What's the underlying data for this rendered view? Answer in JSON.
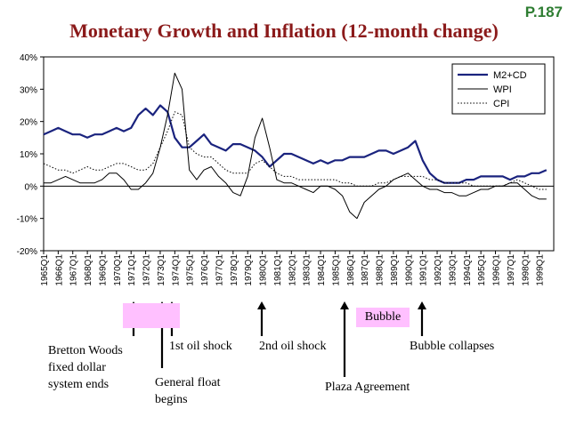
{
  "page_number": "P.187",
  "chart_data": {
    "type": "line",
    "title": "Monetary Growth and Inflation (12-month change)",
    "ylim": [
      -20,
      40
    ],
    "yticks": [
      "40%",
      "30%",
      "20%",
      "10%",
      "0%",
      "-10%",
      "-20%"
    ],
    "ytick_values": [
      40,
      30,
      20,
      10,
      0,
      -10,
      -20
    ],
    "x_start": 1965.0,
    "x_end": 2000.0,
    "xtick_labels": [
      "1965Q1",
      "1966Q1",
      "1967Q1",
      "1968Q1",
      "1969Q1",
      "1970Q1",
      "1971Q1",
      "1972Q1",
      "1973Q1",
      "1974Q1",
      "1975Q1",
      "1976Q1",
      "1977Q1",
      "1978Q1",
      "1979Q1",
      "1980Q1",
      "1981Q1",
      "1982Q1",
      "1983Q1",
      "1984Q1",
      "1985Q1",
      "1986Q1",
      "1987Q1",
      "1988Q1",
      "1989Q1",
      "1990Q1",
      "1991Q1",
      "1992Q1",
      "1993Q1",
      "1994Q1",
      "1995Q1",
      "1996Q1",
      "1997Q1",
      "1998Q1",
      "1999Q1"
    ],
    "legend_position": "top-right",
    "grid": false,
    "series": [
      {
        "name": "M2+CD",
        "color": "#1a237e",
        "style": "solid-thick",
        "x": [
          1965.0,
          1965.5,
          1966.0,
          1966.5,
          1967.0,
          1967.5,
          1968.0,
          1968.5,
          1969.0,
          1969.5,
          1970.0,
          1970.5,
          1971.0,
          1971.5,
          1972.0,
          1972.5,
          1973.0,
          1973.5,
          1974.0,
          1974.5,
          1975.0,
          1975.5,
          1976.0,
          1976.5,
          1977.0,
          1977.5,
          1978.0,
          1978.5,
          1979.0,
          1979.5,
          1980.0,
          1980.5,
          1981.0,
          1981.5,
          1982.0,
          1982.5,
          1983.0,
          1983.5,
          1984.0,
          1984.5,
          1985.0,
          1985.5,
          1986.0,
          1986.5,
          1987.0,
          1987.5,
          1988.0,
          1988.5,
          1989.0,
          1989.5,
          1990.0,
          1990.5,
          1991.0,
          1991.5,
          1992.0,
          1992.5,
          1993.0,
          1993.5,
          1994.0,
          1994.5,
          1995.0,
          1995.5,
          1996.0,
          1996.5,
          1997.0,
          1997.5,
          1998.0,
          1998.5,
          1999.0,
          1999.5
        ],
        "y": [
          16,
          17,
          18,
          17,
          16,
          16,
          15,
          16,
          16,
          17,
          18,
          17,
          18,
          22,
          24,
          22,
          25,
          23,
          15,
          12,
          12,
          14,
          16,
          13,
          12,
          11,
          13,
          13,
          12,
          11,
          9,
          6,
          8,
          10,
          10,
          9,
          8,
          7,
          8,
          7,
          8,
          8,
          9,
          9,
          9,
          10,
          11,
          11,
          10,
          11,
          12,
          14,
          8,
          4,
          2,
          1,
          1,
          1,
          2,
          2,
          3,
          3,
          3,
          3,
          2,
          3,
          3,
          4,
          4,
          5
        ]
      },
      {
        "name": "WPI",
        "color": "#000000",
        "style": "solid-thin",
        "x": [
          1965.0,
          1965.5,
          1966.0,
          1966.5,
          1967.0,
          1967.5,
          1968.0,
          1968.5,
          1969.0,
          1969.5,
          1970.0,
          1970.5,
          1971.0,
          1971.5,
          1972.0,
          1972.5,
          1973.0,
          1973.5,
          1974.0,
          1974.5,
          1975.0,
          1975.5,
          1976.0,
          1976.5,
          1977.0,
          1977.5,
          1978.0,
          1978.5,
          1979.0,
          1979.5,
          1980.0,
          1980.5,
          1981.0,
          1981.5,
          1982.0,
          1982.5,
          1983.0,
          1983.5,
          1984.0,
          1984.5,
          1985.0,
          1985.5,
          1986.0,
          1986.5,
          1987.0,
          1987.5,
          1988.0,
          1988.5,
          1989.0,
          1989.5,
          1990.0,
          1990.5,
          1991.0,
          1991.5,
          1992.0,
          1992.5,
          1993.0,
          1993.5,
          1994.0,
          1994.5,
          1995.0,
          1995.5,
          1996.0,
          1996.5,
          1997.0,
          1997.5,
          1998.0,
          1998.5,
          1999.0,
          1999.5
        ],
        "y": [
          1,
          1,
          2,
          3,
          2,
          1,
          1,
          1,
          2,
          4,
          4,
          2,
          -1,
          -1,
          1,
          4,
          12,
          22,
          35,
          30,
          5,
          2,
          5,
          6,
          3,
          1,
          -2,
          -3,
          3,
          15,
          21,
          12,
          2,
          1,
          1,
          0,
          -1,
          -2,
          0,
          0,
          -1,
          -3,
          -8,
          -10,
          -5,
          -3,
          -1,
          0,
          2,
          3,
          4,
          2,
          0,
          -1,
          -1,
          -2,
          -2,
          -3,
          -3,
          -2,
          -1,
          -1,
          0,
          0,
          1,
          1,
          -1,
          -3,
          -4,
          -4
        ]
      },
      {
        "name": "CPI",
        "color": "#000000",
        "style": "dotted",
        "x": [
          1965.0,
          1965.5,
          1966.0,
          1966.5,
          1967.0,
          1967.5,
          1968.0,
          1968.5,
          1969.0,
          1969.5,
          1970.0,
          1970.5,
          1971.0,
          1971.5,
          1972.0,
          1972.5,
          1973.0,
          1973.5,
          1974.0,
          1974.5,
          1975.0,
          1975.5,
          1976.0,
          1976.5,
          1977.0,
          1977.5,
          1978.0,
          1978.5,
          1979.0,
          1979.5,
          1980.0,
          1980.5,
          1981.0,
          1981.5,
          1982.0,
          1982.5,
          1983.0,
          1983.5,
          1984.0,
          1984.5,
          1985.0,
          1985.5,
          1986.0,
          1986.5,
          1987.0,
          1987.5,
          1988.0,
          1988.5,
          1989.0,
          1989.5,
          1990.0,
          1990.5,
          1991.0,
          1991.5,
          1992.0,
          1992.5,
          1993.0,
          1993.5,
          1994.0,
          1994.5,
          1995.0,
          1995.5,
          1996.0,
          1996.5,
          1997.0,
          1997.5,
          1998.0,
          1998.5,
          1999.0,
          1999.5
        ],
        "y": [
          7,
          6,
          5,
          5,
          4,
          5,
          6,
          5,
          5,
          6,
          7,
          7,
          6,
          5,
          5,
          7,
          12,
          17,
          23,
          22,
          12,
          10,
          9,
          9,
          7,
          5,
          4,
          4,
          4,
          7,
          8,
          6,
          4,
          3,
          3,
          2,
          2,
          2,
          2,
          2,
          2,
          1,
          1,
          0,
          0,
          0,
          1,
          1,
          2,
          3,
          3,
          3,
          3,
          2,
          2,
          1,
          1,
          1,
          1,
          0,
          0,
          0,
          0,
          0,
          1,
          2,
          1,
          0,
          -1,
          -1
        ]
      }
    ]
  },
  "annotations": {
    "bretton_woods": "Bretton Woods\nfixed dollar\nsystem ends",
    "general_float": "General float\nbegins",
    "oil_shock_1": "1st oil shock",
    "oil_shock_2": "2nd oil shock",
    "plaza": "Plaza Agreement",
    "bubble": "Bubble",
    "bubble_collapses": "Bubble collapses"
  },
  "colors": {
    "title": "#8b1a1a",
    "page_number": "#2e7d32",
    "highlight": "#ffc0ff"
  }
}
